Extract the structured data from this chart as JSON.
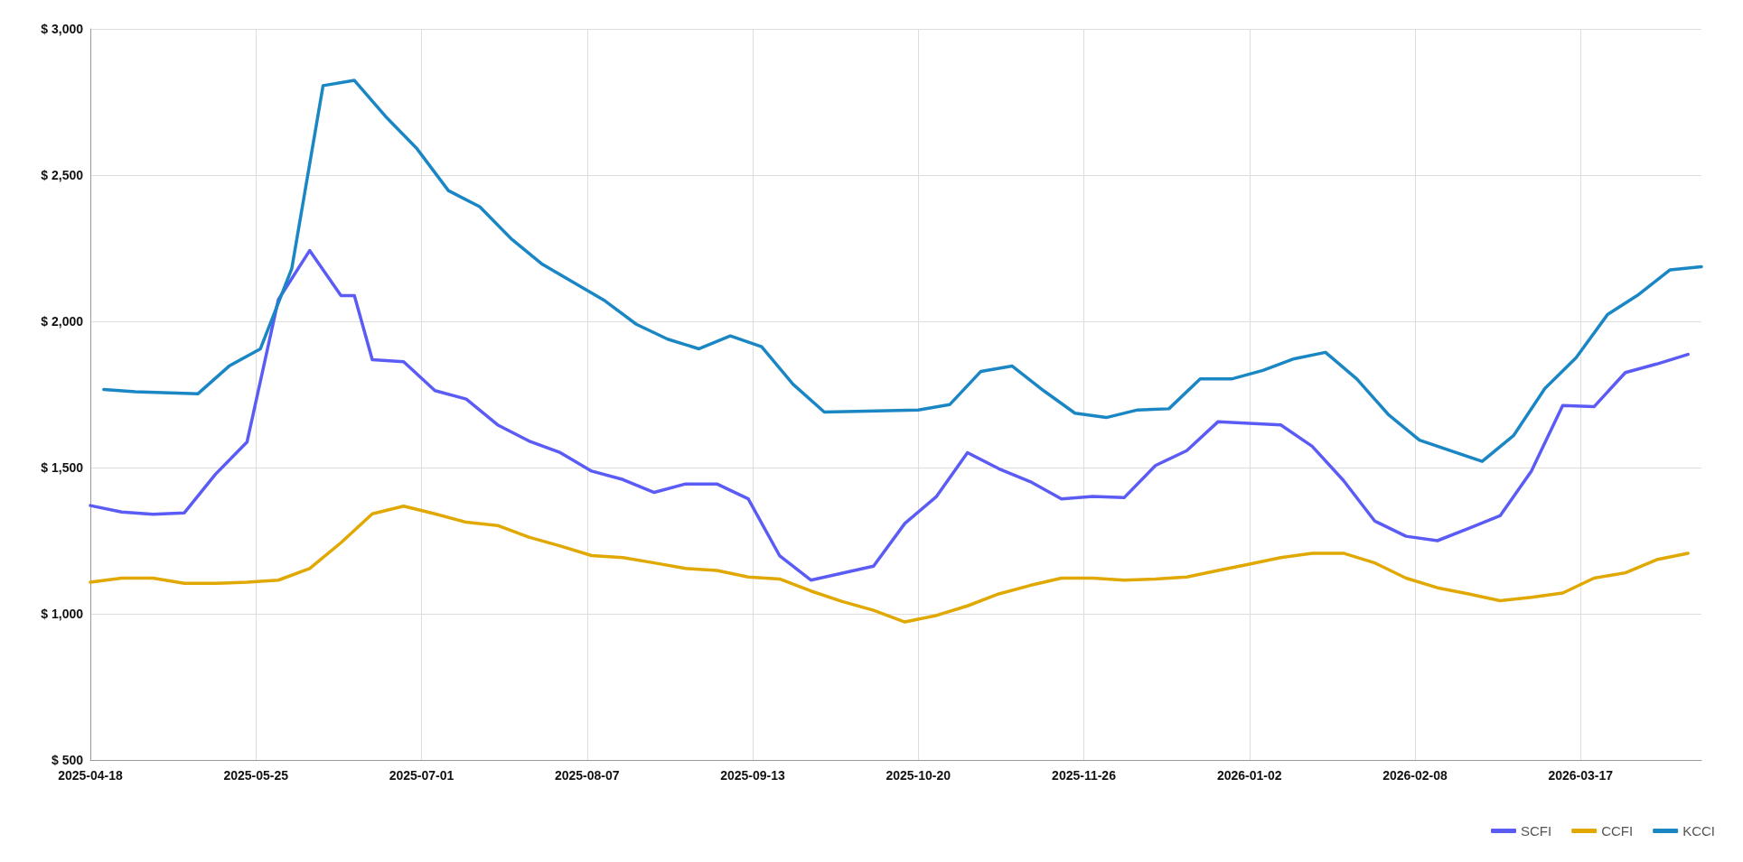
{
  "chart_data": {
    "type": "line",
    "xlim": [
      "2025-04-18",
      "2026-04-13"
    ],
    "xticks": [
      "2025-04-18",
      "2025-05-25",
      "2025-07-01",
      "2025-08-07",
      "2025-09-13",
      "2025-10-20",
      "2025-11-26",
      "2026-01-02",
      "2026-02-08",
      "2026-03-17"
    ],
    "ylim": [
      500,
      3000
    ],
    "yticks": [
      {
        "value": 500,
        "label": "$ 500"
      },
      {
        "value": 1000,
        "label": "$ 1,000"
      },
      {
        "value": 1500,
        "label": "$ 1,500"
      },
      {
        "value": 2000,
        "label": "$ 2,000"
      },
      {
        "value": 2500,
        "label": "$ 2,500"
      },
      {
        "value": 3000,
        "label": "$ 3,000"
      }
    ],
    "grid": true,
    "legend": "bottom right",
    "marker": "none",
    "line_style": "solid",
    "series": [
      {
        "name": "SCFI",
        "color": "#5b5bf5",
        "x": [
          "2025-04-18",
          "2025-04-25",
          "2025-05-02",
          "2025-05-09",
          "2025-05-16",
          "2025-05-23",
          "2025-05-30",
          "2025-06-06",
          "2025-06-13",
          "2025-06-16",
          "2025-06-20",
          "2025-06-27",
          "2025-07-04",
          "2025-07-11",
          "2025-07-18",
          "2025-07-25",
          "2025-08-01",
          "2025-08-08",
          "2025-08-15",
          "2025-08-22",
          "2025-08-29",
          "2025-09-05",
          "2025-09-12",
          "2025-09-19",
          "2025-09-26",
          "2025-10-10",
          "2025-10-17",
          "2025-10-24",
          "2025-10-31",
          "2025-11-07",
          "2025-11-14",
          "2025-11-21",
          "2025-11-28",
          "2025-12-05",
          "2025-12-12",
          "2025-12-19",
          "2025-12-26",
          "2026-01-09",
          "2026-01-16",
          "2026-01-23",
          "2026-01-30",
          "2026-02-06",
          "2026-02-13",
          "2026-02-20",
          "2026-02-27",
          "2026-03-06",
          "2026-03-13",
          "2026-03-20",
          "2026-03-27",
          "2026-04-03",
          "2026-04-10"
        ],
        "values": [
          1370,
          1348,
          1340,
          1345,
          1478,
          1587,
          2074,
          2242,
          2088,
          2088,
          1869,
          1862,
          1763,
          1734,
          1646,
          1591,
          1551,
          1488,
          1459,
          1415,
          1444,
          1444,
          1393,
          1199,
          1115,
          1163,
          1309,
          1400,
          1551,
          1496,
          1452,
          1393,
          1401,
          1397,
          1507,
          1558,
          1657,
          1646,
          1573,
          1456,
          1317,
          1265,
          1250,
          1292,
          1335,
          1488,
          1712,
          1708,
          1825,
          1854,
          1887
        ]
      },
      {
        "name": "CCFI",
        "color": "#e0a800",
        "x": [
          "2025-04-18",
          "2025-04-25",
          "2025-05-02",
          "2025-05-09",
          "2025-05-16",
          "2025-05-23",
          "2025-05-30",
          "2025-06-06",
          "2025-06-13",
          "2025-06-20",
          "2025-06-27",
          "2025-07-04",
          "2025-07-11",
          "2025-07-18",
          "2025-07-25",
          "2025-08-01",
          "2025-08-08",
          "2025-08-15",
          "2025-08-22",
          "2025-08-29",
          "2025-09-05",
          "2025-09-12",
          "2025-09-19",
          "2025-09-26",
          "2025-10-03",
          "2025-10-10",
          "2025-10-17",
          "2025-10-24",
          "2025-10-31",
          "2025-11-07",
          "2025-11-14",
          "2025-11-21",
          "2025-11-28",
          "2025-12-05",
          "2025-12-12",
          "2025-12-19",
          "2025-12-26",
          "2026-01-02",
          "2026-01-09",
          "2026-01-16",
          "2026-01-23",
          "2026-01-30",
          "2026-02-06",
          "2026-02-13",
          "2026-02-20",
          "2026-02-27",
          "2026-03-06",
          "2026-03-13",
          "2026-03-20",
          "2026-03-27",
          "2026-04-03",
          "2026-04-10"
        ],
        "values": [
          1108,
          1122,
          1122,
          1104,
          1104,
          1108,
          1115,
          1155,
          1243,
          1342,
          1368,
          1342,
          1313,
          1302,
          1262,
          1232,
          1199,
          1192,
          1174,
          1155,
          1148,
          1126,
          1119,
          1078,
          1042,
          1012,
          972,
          994,
          1027,
          1068,
          1097,
          1122,
          1122,
          1115,
          1119,
          1126,
          1148,
          1170,
          1192,
          1207,
          1207,
          1174,
          1122,
          1089,
          1068,
          1045,
          1056,
          1071,
          1122,
          1140,
          1185,
          1207
        ]
      },
      {
        "name": "KCCI",
        "color": "#1a87c4",
        "x": [
          "2025-04-21",
          "2025-04-28",
          "2025-05-12",
          "2025-05-19",
          "2025-05-26",
          "2025-06-02",
          "2025-06-09",
          "2025-06-16",
          "2025-06-23",
          "2025-06-30",
          "2025-07-07",
          "2025-07-14",
          "2025-07-21",
          "2025-07-28",
          "2025-08-04",
          "2025-08-11",
          "2025-08-18",
          "2025-08-25",
          "2025-09-01",
          "2025-09-08",
          "2025-09-15",
          "2025-09-22",
          "2025-09-29",
          "2025-10-20",
          "2025-10-27",
          "2025-11-03",
          "2025-11-10",
          "2025-11-17",
          "2025-11-24",
          "2025-12-01",
          "2025-12-08",
          "2025-12-15",
          "2025-12-22",
          "2025-12-29",
          "2026-01-05",
          "2026-01-12",
          "2026-01-19",
          "2026-01-26",
          "2026-02-02",
          "2026-02-09",
          "2026-02-23",
          "2026-03-02",
          "2026-03-09",
          "2026-03-16",
          "2026-03-23",
          "2026-03-30",
          "2026-04-06",
          "2026-04-13"
        ],
        "values": [
          1767,
          1759,
          1752,
          1847,
          1906,
          2180,
          2806,
          2824,
          2700,
          2590,
          2447,
          2392,
          2283,
          2195,
          2133,
          2070,
          1990,
          1939,
          1906,
          1950,
          1913,
          1785,
          1690,
          1697,
          1715,
          1829,
          1847,
          1763,
          1686,
          1671,
          1697,
          1701,
          1803,
          1803,
          1832,
          1872,
          1894,
          1803,
          1682,
          1594,
          1521,
          1609,
          1770,
          1876,
          2023,
          2092,
          2176,
          2187
        ]
      }
    ]
  }
}
